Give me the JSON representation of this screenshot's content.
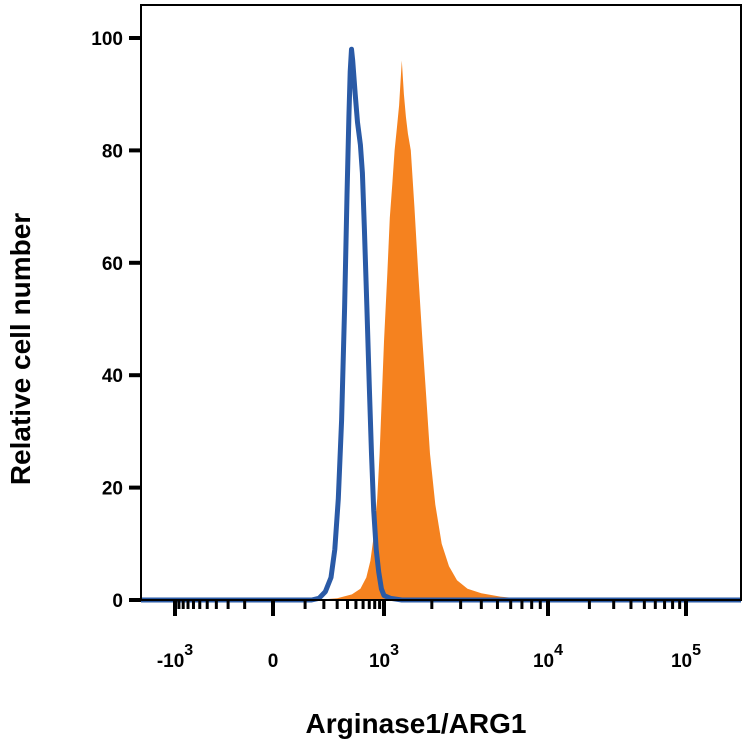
{
  "chart_data": {
    "type": "area",
    "title": "",
    "xlabel": "Arginase1/ARG1",
    "ylabel": "Relative cell number",
    "x_scale": "biexponential",
    "xlim": [
      -2000,
      200000
    ],
    "ylim": [
      0,
      100
    ],
    "grid": false,
    "y_ticks": [
      0,
      20,
      40,
      60,
      80,
      100
    ],
    "x_ticks": [
      {
        "value": -1000,
        "label": "-10",
        "exp": "3"
      },
      {
        "value": 0,
        "label": "0",
        "exp": ""
      },
      {
        "value": 1000,
        "label": "10",
        "exp": "3"
      },
      {
        "value": 10000,
        "label": "10",
        "exp": "4"
      },
      {
        "value": 100000,
        "label": "10",
        "exp": "5"
      }
    ],
    "series": [
      {
        "style": "filled",
        "color": "#f5821f",
        "points": [
          [
            -2000,
            0
          ],
          [
            150,
            0
          ],
          [
            300,
            0.3
          ],
          [
            450,
            1
          ],
          [
            560,
            2
          ],
          [
            650,
            4
          ],
          [
            720,
            7
          ],
          [
            790,
            12
          ],
          [
            850,
            18
          ],
          [
            900,
            26
          ],
          [
            950,
            36
          ],
          [
            1000,
            46
          ],
          [
            1050,
            58
          ],
          [
            1090,
            68
          ],
          [
            1130,
            74
          ],
          [
            1170,
            80
          ],
          [
            1210,
            84
          ],
          [
            1250,
            88
          ],
          [
            1280,
            93
          ],
          [
            1300,
            96
          ],
          [
            1340,
            90
          ],
          [
            1380,
            86
          ],
          [
            1420,
            83
          ],
          [
            1480,
            80
          ],
          [
            1560,
            70
          ],
          [
            1650,
            58
          ],
          [
            1750,
            46
          ],
          [
            1850,
            36
          ],
          [
            1950,
            26
          ],
          [
            2100,
            17
          ],
          [
            2300,
            10
          ],
          [
            2550,
            6
          ],
          [
            2850,
            3.5
          ],
          [
            3300,
            2
          ],
          [
            4000,
            1.2
          ],
          [
            5200,
            0.6
          ],
          [
            7000,
            0.2
          ],
          [
            9000,
            0
          ],
          [
            200000,
            0
          ]
        ]
      },
      {
        "style": "line",
        "color": "#2a5aa6",
        "points": [
          [
            -2000,
            0
          ],
          [
            130,
            0
          ],
          [
            170,
            0.3
          ],
          [
            210,
            1.5
          ],
          [
            250,
            4
          ],
          [
            280,
            9
          ],
          [
            310,
            18
          ],
          [
            340,
            32
          ],
          [
            370,
            52
          ],
          [
            395,
            72
          ],
          [
            415,
            86
          ],
          [
            430,
            94
          ],
          [
            445,
            98
          ],
          [
            460,
            96
          ],
          [
            490,
            90
          ],
          [
            520,
            85
          ],
          [
            560,
            81
          ],
          [
            590,
            76
          ],
          [
            620,
            66
          ],
          [
            660,
            52
          ],
          [
            700,
            38
          ],
          [
            740,
            26
          ],
          [
            780,
            16
          ],
          [
            830,
            9
          ],
          [
            880,
            5
          ],
          [
            940,
            2
          ],
          [
            1000,
            0.8
          ],
          [
            1100,
            0.3
          ],
          [
            1300,
            0
          ],
          [
            200000,
            0
          ]
        ]
      }
    ]
  }
}
